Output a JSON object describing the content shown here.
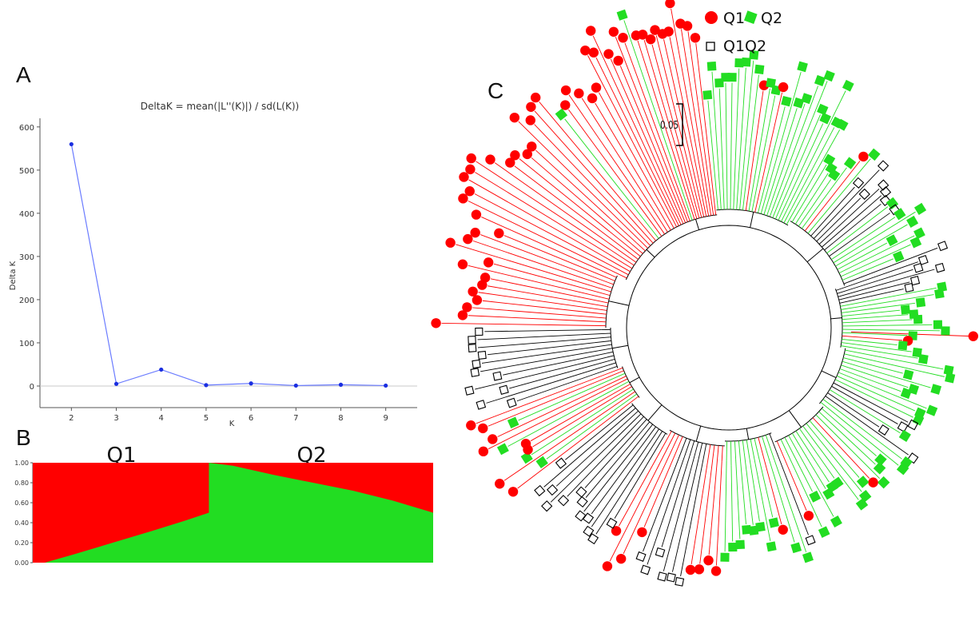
{
  "panels": {
    "a_label": "A",
    "b_label": "B",
    "c_label": "C"
  },
  "colors": {
    "q1": "#ff0000",
    "q2": "#22dd22",
    "admixed": "#000000",
    "deltak_line": "#6a7bff",
    "deltak_point": "#1a2ee0"
  },
  "chart_data": [
    {
      "type": "line",
      "title": "DeltaK = mean(|L''(K)|) / sd(L(K))",
      "xlabel": "K",
      "ylabel": "Delta K",
      "x": [
        2,
        3,
        4,
        5,
        6,
        7,
        8,
        9
      ],
      "values": [
        560,
        5,
        38,
        2,
        6,
        1,
        3,
        1
      ],
      "xlim": [
        1.3,
        9.7
      ],
      "ylim": [
        -50,
        620
      ],
      "yticks": [
        0,
        100,
        200,
        300,
        400,
        500,
        600
      ],
      "xticks": [
        2,
        3,
        4,
        5,
        6,
        7,
        8,
        9
      ],
      "zero_line": true,
      "grid": false
    },
    {
      "type": "area",
      "xlabel": "",
      "ylabel": "",
      "yticks": [
        "0.00",
        "0.20",
        "0.40",
        "0.60",
        "0.80",
        "1.00"
      ],
      "ylim": [
        0,
        1
      ],
      "groups": [
        "Q1",
        "Q2"
      ],
      "split": 0.44,
      "series": [
        {
          "name": "Q1",
          "color": "#ff0000"
        },
        {
          "name": "Q2",
          "color": "#22dd22"
        }
      ],
      "q2_fraction_profile": [
        {
          "x": 0.0,
          "y": 0.0
        },
        {
          "x": 0.03,
          "y": 0.0
        },
        {
          "x": 0.1,
          "y": 0.08
        },
        {
          "x": 0.2,
          "y": 0.2
        },
        {
          "x": 0.3,
          "y": 0.32
        },
        {
          "x": 0.38,
          "y": 0.42
        },
        {
          "x": 0.44,
          "y": 0.5
        },
        {
          "x": 0.44,
          "y": 1.0
        },
        {
          "x": 0.5,
          "y": 0.97
        },
        {
          "x": 0.6,
          "y": 0.88
        },
        {
          "x": 0.7,
          "y": 0.8
        },
        {
          "x": 0.8,
          "y": 0.72
        },
        {
          "x": 0.9,
          "y": 0.62
        },
        {
          "x": 1.0,
          "y": 0.5
        }
      ]
    }
  ],
  "tree": {
    "scale_label": "0.05",
    "legend": [
      {
        "key": "q1",
        "label": "Q1",
        "shape": "circle"
      },
      {
        "key": "q2",
        "label": "Q2",
        "shape": "square"
      },
      {
        "key": "admixed",
        "label": "Q1Q2",
        "shape": "open-square"
      }
    ]
  }
}
